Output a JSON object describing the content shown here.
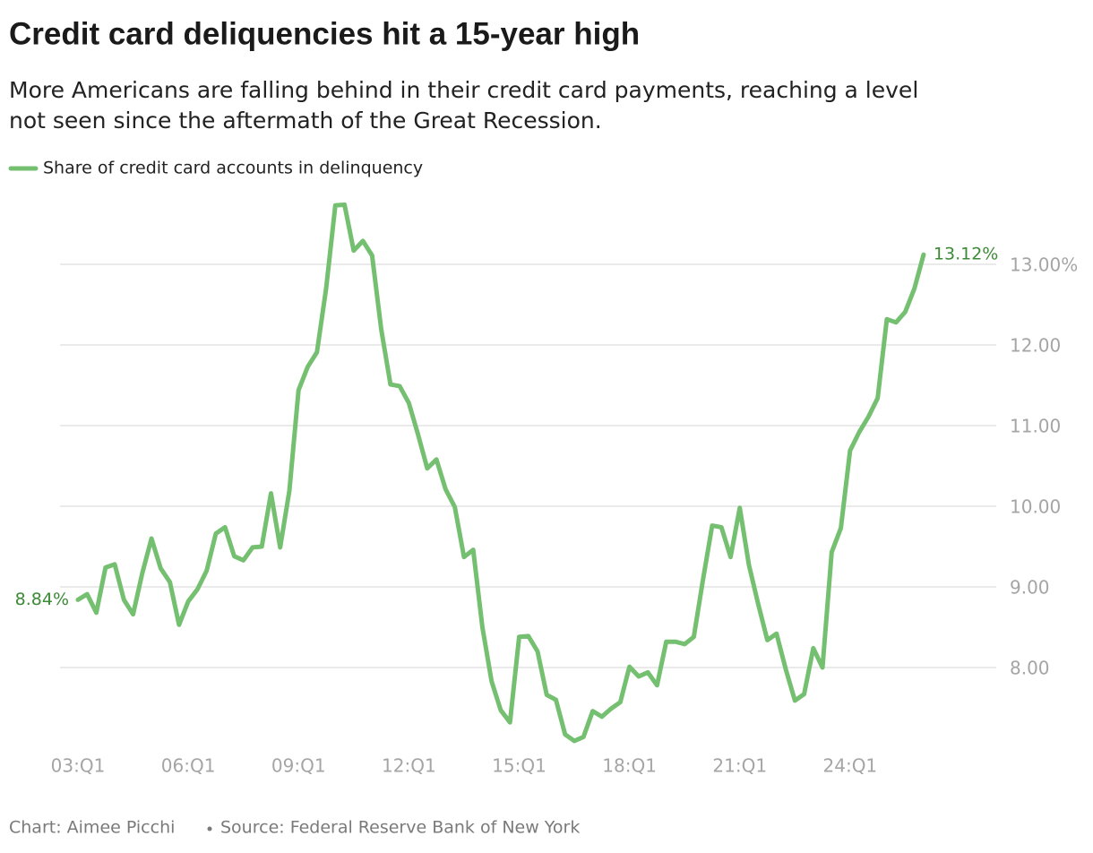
{
  "chart_data": {
    "type": "line",
    "title": "Credit card deliquencies hit a 15-year high",
    "subtitle": [
      "More Americans are falling behind in their credit card payments, reaching a level",
      "not seen since the aftermath of the Great Recession."
    ],
    "credit": "Chart: Aimee Picchi",
    "source": "Source: Federal Reserve Bank of New York",
    "categories": [
      "03:Q1",
      null,
      null,
      null,
      null,
      null,
      null,
      null,
      null,
      null,
      null,
      null,
      "06:Q1",
      null,
      null,
      null,
      null,
      null,
      null,
      null,
      null,
      null,
      null,
      null,
      "09:Q1",
      null,
      null,
      null,
      null,
      null,
      null,
      null,
      null,
      null,
      null,
      null,
      "12:Q1",
      null,
      null,
      null,
      null,
      null,
      null,
      null,
      null,
      null,
      null,
      null,
      "15:Q1",
      null,
      null,
      null,
      null,
      null,
      null,
      null,
      null,
      null,
      null,
      null,
      "18:Q1",
      null,
      null,
      null,
      null,
      null,
      null,
      null,
      null,
      null,
      null,
      null,
      "21:Q1",
      null,
      null,
      null,
      null,
      null,
      null,
      null,
      null,
      null,
      null,
      null,
      "24:Q1",
      null,
      null,
      null,
      null,
      null,
      null,
      null,
      null
    ],
    "series": [
      {
        "name": "Share of credit card accounts in delinquency",
        "color": "#74bf70",
        "values": [
          8.84,
          8.91,
          8.68,
          9.24,
          9.28,
          8.84,
          8.66,
          9.17,
          9.6,
          9.23,
          9.06,
          8.53,
          8.82,
          8.97,
          9.2,
          9.66,
          9.74,
          9.38,
          9.33,
          9.49,
          9.5,
          10.16,
          9.49,
          10.19,
          11.44,
          11.73,
          11.91,
          12.7,
          13.73,
          13.74,
          13.17,
          13.29,
          13.11,
          12.19,
          11.51,
          11.49,
          11.28,
          10.89,
          10.47,
          10.58,
          10.21,
          9.99,
          9.37,
          9.46,
          8.5,
          7.83,
          7.47,
          7.32,
          8.38,
          8.39,
          8.2,
          7.66,
          7.6,
          7.17,
          7.09,
          7.14,
          7.46,
          7.39,
          7.49,
          7.57,
          8.01,
          7.89,
          7.94,
          7.78,
          8.32,
          8.32,
          8.29,
          8.38,
          9.09,
          9.76,
          9.74,
          9.37,
          9.98,
          9.27,
          8.79,
          8.34,
          8.42,
          7.98,
          7.59,
          7.67,
          8.24,
          8.0,
          9.43,
          9.73,
          10.69,
          10.92,
          11.11,
          11.34,
          12.32,
          12.28,
          12.41,
          12.7,
          13.12
        ],
        "value_labels": [
          "8.84%",
          null,
          null,
          null,
          null,
          null,
          null,
          null,
          null,
          null,
          null,
          null,
          null,
          null,
          null,
          null,
          null,
          null,
          null,
          null,
          null,
          null,
          null,
          null,
          null,
          null,
          null,
          null,
          null,
          null,
          null,
          null,
          null,
          null,
          null,
          null,
          null,
          null,
          null,
          null,
          null,
          null,
          null,
          null,
          null,
          null,
          null,
          null,
          null,
          null,
          null,
          null,
          null,
          null,
          null,
          null,
          null,
          null,
          null,
          null,
          null,
          null,
          null,
          null,
          null,
          null,
          null,
          null,
          null,
          null,
          null,
          null,
          null,
          null,
          null,
          null,
          null,
          null,
          null,
          null,
          null,
          null,
          null,
          null,
          null,
          null,
          null,
          null,
          null,
          null,
          null,
          null,
          "13.12%"
        ]
      }
    ],
    "value_label_color": "#3b8a35",
    "ylim": [
      7,
      13.8
    ],
    "yticks": [
      {
        "value": 8,
        "label": "8.00"
      },
      {
        "value": 9,
        "label": "9.00"
      },
      {
        "value": 10,
        "label": "10.00"
      },
      {
        "value": 11,
        "label": "11.00"
      },
      {
        "value": 12,
        "label": "12.00"
      },
      {
        "value": 13,
        "label": "13.00%"
      }
    ],
    "grid": true
  }
}
